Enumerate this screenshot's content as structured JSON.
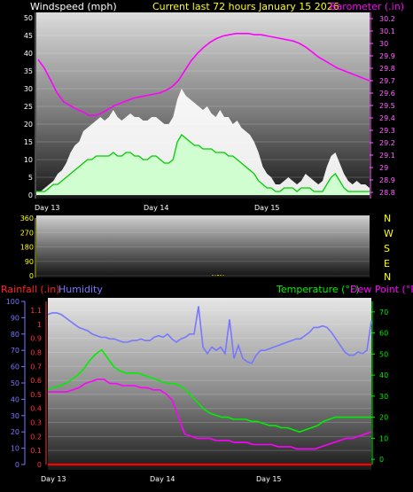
{
  "header": {
    "wind_title": "Windspeed (mph)",
    "current_title": "Current last 72 hours January 15 2026",
    "baro_title": "Barometer (.in)"
  },
  "lower_header": {
    "rain_title": "Rainfall (.in)",
    "humidity_title": "Humidity",
    "temp_title": "Temperature (°F)",
    "dew_title": "Dew Point (°F)"
  },
  "compass": [
    "N",
    "W",
    "S",
    "E",
    "N"
  ],
  "day_labels": [
    "Day 13",
    "Day 14",
    "Day 15"
  ],
  "colors": {
    "wind_gust": "#ffffff",
    "wind_avg": "#ccffcc",
    "wind_avg_line": "#00cc00",
    "barometer": "#ff00ff",
    "humidity": "#7777ff",
    "temperature": "#00ee00",
    "dewpoint": "#ff00ff",
    "rainfall": "#ff0000",
    "wind_axis": "#ffffff",
    "baro_axis": "#ff66ff",
    "dir_axis": "#ffff00",
    "rain_axis": "#ff3333",
    "hum_axis": "#7777ff",
    "temp_axis": "#00ee00"
  },
  "chart_data": [
    {
      "type": "area",
      "name": "wind_and_barometer",
      "x_labels": [
        "Day 13",
        "Day 14",
        "Day 15"
      ],
      "y_left_label": "Windspeed (mph)",
      "y_left_ticks": [
        "0",
        "5",
        "10",
        "15",
        "20",
        "25",
        "30",
        "35",
        "40",
        "45",
        "50"
      ],
      "y_left_range": [
        0,
        50
      ],
      "y_right_label": "Barometer (.in)",
      "y_right_ticks": [
        "28.8",
        "28.9",
        "29",
        "29.1",
        "29.2",
        "29.3",
        "29.4",
        "29.5",
        "29.6",
        "29.7",
        "29.8",
        "29.9",
        "30",
        "30.1",
        "30.2"
      ],
      "y_right_range": [
        28.75,
        30.25
      ],
      "series": [
        {
          "name": "gust",
          "values": [
            1,
            1,
            2,
            3,
            4,
            6,
            7,
            9,
            12,
            14,
            15,
            18,
            19,
            20,
            21,
            22,
            21,
            22,
            24,
            22,
            21,
            22,
            23,
            22,
            22,
            21,
            21,
            22,
            22,
            21,
            20,
            20,
            22,
            27,
            30,
            28,
            27,
            26,
            25,
            24,
            25,
            23,
            22,
            24,
            22,
            22,
            20,
            21,
            19,
            18,
            17,
            15,
            12,
            8,
            6,
            5,
            3,
            3,
            4,
            5,
            4,
            3,
            4,
            6,
            5,
            4,
            3,
            4,
            8,
            11,
            12,
            9,
            6,
            4,
            3,
            4,
            3,
            3,
            2
          ]
        },
        {
          "name": "average",
          "values": [
            1,
            1,
            1,
            2,
            3,
            3,
            4,
            5,
            6,
            7,
            8,
            9,
            10,
            10,
            11,
            11,
            11,
            11,
            12,
            11,
            11,
            12,
            12,
            11,
            11,
            10,
            10,
            11,
            11,
            10,
            9,
            9,
            10,
            15,
            17,
            16,
            15,
            14,
            14,
            13,
            13,
            13,
            12,
            12,
            12,
            11,
            11,
            10,
            9,
            8,
            7,
            6,
            4,
            3,
            2,
            2,
            1,
            1,
            2,
            2,
            2,
            1,
            2,
            2,
            2,
            1,
            1,
            1,
            3,
            5,
            6,
            4,
            2,
            1,
            1,
            1,
            1,
            1,
            1
          ]
        },
        {
          "name": "barometer",
          "values": [
            29.87,
            29.8,
            29.7,
            29.6,
            29.53,
            29.5,
            29.47,
            29.45,
            29.42,
            29.42,
            29.44,
            29.47,
            29.5,
            29.52,
            29.54,
            29.56,
            29.57,
            29.58,
            29.59,
            29.6,
            29.62,
            29.65,
            29.7,
            29.78,
            29.86,
            29.92,
            29.97,
            30.01,
            30.04,
            30.06,
            30.07,
            30.08,
            30.08,
            30.08,
            30.07,
            30.07,
            30.06,
            30.05,
            30.04,
            30.03,
            30.02,
            30.0,
            29.97,
            29.93,
            29.89,
            29.86,
            29.83,
            29.8,
            29.78,
            29.76,
            29.74,
            29.72,
            29.7
          ]
        }
      ]
    },
    {
      "type": "bar",
      "name": "wind_direction",
      "y_ticks": [
        "0",
        "90",
        "180",
        "270",
        "360"
      ],
      "y_range": [
        0,
        360
      ],
      "x_labels": [],
      "values": [
        3,
        2,
        4,
        3,
        2
      ]
    },
    {
      "type": "line",
      "name": "temperature_humidity_rain",
      "x_labels": [
        "Day 13",
        "Day 14",
        "Day 15"
      ],
      "humidity_ticks": [
        "0",
        "10",
        "20",
        "30",
        "40",
        "50",
        "60",
        "70",
        "80",
        "90",
        "100"
      ],
      "humidity_range": [
        0,
        100
      ],
      "rain_ticks": [
        "0",
        "0.1",
        "0.2",
        "0.3",
        "0.4",
        "0.5",
        "0.6",
        "0.7",
        "0.8",
        "0.9",
        "1",
        "1.1"
      ],
      "rain_range": [
        0,
        1.1
      ],
      "temp_ticks": [
        "0",
        "10",
        "20",
        "30",
        "40",
        "50",
        "60",
        "70"
      ],
      "temp_range": [
        -5,
        75
      ],
      "series": [
        {
          "name": "Humidity",
          "values": [
            92,
            93,
            93,
            92,
            90,
            88,
            86,
            84,
            83,
            82,
            80,
            79,
            78,
            78,
            77,
            77,
            76,
            75,
            75,
            76,
            76,
            77,
            76,
            76,
            78,
            79,
            78,
            80,
            77,
            75,
            77,
            78,
            80,
            80,
            97,
            72,
            68,
            72,
            70,
            72,
            68,
            89,
            65,
            73,
            65,
            63,
            62,
            67,
            70,
            70,
            71,
            72,
            73,
            74,
            75,
            76,
            77,
            77,
            79,
            81,
            84,
            84,
            85,
            84,
            81,
            77,
            73,
            69,
            67,
            67,
            69,
            68,
            70,
            88
          ]
        },
        {
          "name": "Temperature (°F)",
          "values": [
            33,
            34,
            35,
            36,
            38,
            40,
            43,
            47,
            50,
            52,
            48,
            44,
            42,
            41,
            41,
            41,
            40,
            39,
            38,
            37,
            36,
            36,
            35,
            33,
            30,
            27,
            24,
            22,
            21,
            20,
            20,
            19,
            19,
            19,
            18,
            18,
            17,
            16,
            16,
            15,
            15,
            14,
            13,
            14,
            15,
            16,
            18,
            19,
            20,
            20,
            20,
            20,
            20,
            20,
            20
          ]
        },
        {
          "name": "Dew Point (°F)",
          "values": [
            32,
            32,
            32,
            32,
            33,
            34,
            36,
            37,
            38,
            38,
            36,
            36,
            35,
            35,
            35,
            34,
            34,
            33,
            33,
            31,
            28,
            20,
            12,
            11,
            10,
            10,
            10,
            9,
            9,
            9,
            8,
            8,
            8,
            7,
            7,
            7,
            7,
            6,
            6,
            6,
            5,
            5,
            5,
            5,
            6,
            7,
            8,
            9,
            10,
            10,
            11,
            12,
            13
          ]
        },
        {
          "name": "Rainfall (.in)",
          "values": [
            0,
            0,
            0,
            0,
            0,
            0,
            0,
            0,
            0,
            0
          ]
        }
      ]
    }
  ]
}
